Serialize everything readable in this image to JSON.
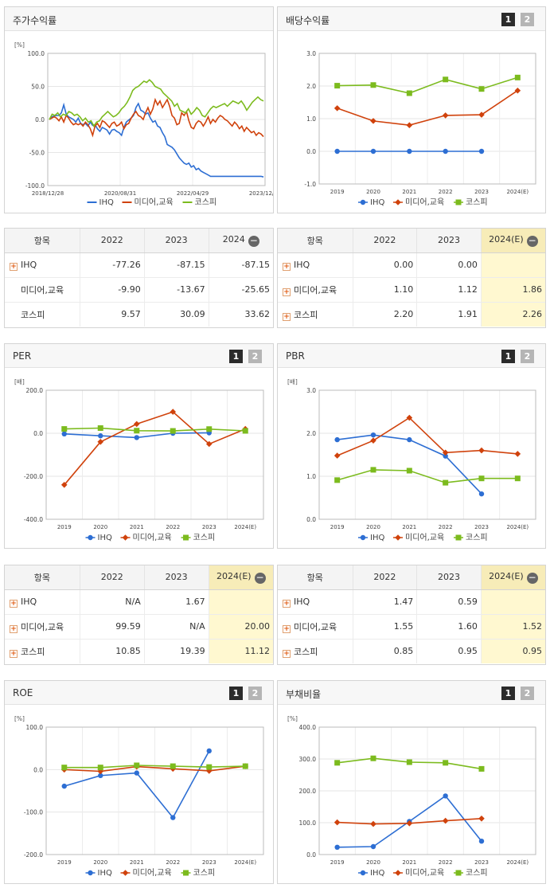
{
  "colors": {
    "ihq": "#2d6ed3",
    "media": "#d0420c",
    "kospi": "#7cbb1e"
  },
  "legend": [
    "IHQ",
    "미디어,교육",
    "코스피"
  ],
  "buttons": {
    "one": "1",
    "two": "2"
  },
  "panels": {
    "stock": {
      "title": "주가수익률"
    },
    "dividend": {
      "title": "배당수익률"
    },
    "per": {
      "title": "PER"
    },
    "pbr": {
      "title": "PBR"
    },
    "roe": {
      "title": "ROE"
    },
    "debt": {
      "title": "부채비율"
    }
  },
  "tables": {
    "stock": {
      "headers": [
        "항목",
        "2022",
        "2023",
        "2024"
      ],
      "rows": [
        {
          "name": "IHQ",
          "v": [
            "-77.26",
            "-87.15",
            "-87.15"
          ]
        },
        {
          "name": "미디어,교육",
          "v": [
            "-9.90",
            "-13.67",
            "-25.65"
          ]
        },
        {
          "name": "코스피",
          "v": [
            "9.57",
            "30.09",
            "33.62"
          ]
        }
      ]
    },
    "dividend": {
      "headers": [
        "항목",
        "2022",
        "2023",
        "2024(E)"
      ],
      "rows": [
        {
          "name": "IHQ",
          "v": [
            "0.00",
            "0.00",
            ""
          ]
        },
        {
          "name": "미디어,교육",
          "v": [
            "1.10",
            "1.12",
            "1.86"
          ]
        },
        {
          "name": "코스피",
          "v": [
            "2.20",
            "1.91",
            "2.26"
          ]
        }
      ]
    },
    "per": {
      "headers": [
        "항목",
        "2022",
        "2023",
        "2024(E)"
      ],
      "rows": [
        {
          "name": "IHQ",
          "v": [
            "N/A",
            "1.67",
            ""
          ]
        },
        {
          "name": "미디어,교육",
          "v": [
            "99.59",
            "N/A",
            "20.00"
          ]
        },
        {
          "name": "코스피",
          "v": [
            "10.85",
            "19.39",
            "11.12"
          ]
        }
      ]
    },
    "pbr": {
      "headers": [
        "항목",
        "2022",
        "2023",
        "2024(E)"
      ],
      "rows": [
        {
          "name": "IHQ",
          "v": [
            "1.47",
            "0.59",
            ""
          ]
        },
        {
          "name": "미디어,교육",
          "v": [
            "1.55",
            "1.60",
            "1.52"
          ]
        },
        {
          "name": "코스피",
          "v": [
            "0.85",
            "0.95",
            "0.95"
          ]
        }
      ]
    }
  },
  "chart_data": [
    {
      "id": "stock",
      "type": "line",
      "unit": "[%]",
      "ylim": [
        -100,
        100
      ],
      "yticks": [
        "100.0",
        "50.0",
        "0.0",
        "-50.0",
        "-100.0"
      ],
      "xticks": [
        "2018/12/28",
        "2020/08/31",
        "2022/04/29",
        "2023/12/28"
      ],
      "series": [
        {
          "name": "IHQ",
          "values": [
            0,
            4,
            5,
            6,
            6,
            10,
            22,
            8,
            4,
            2,
            0,
            -4,
            2,
            -6,
            -8,
            -6,
            -10,
            -4,
            -9,
            -8,
            -14,
            -18,
            -12,
            -14,
            -16,
            -22,
            -16,
            -15,
            -18,
            -20,
            -24,
            -12,
            -4,
            -1,
            2,
            6,
            18,
            24,
            14,
            12,
            8,
            10,
            2,
            -4,
            -2,
            -10,
            -12,
            -20,
            -26,
            -38,
            -40,
            -42,
            -46,
            -52,
            -58,
            -62,
            -66,
            -68,
            -66,
            -72,
            -70,
            -76,
            -74,
            -78,
            -80,
            -82,
            -84,
            -86,
            -86,
            -86,
            -86,
            -86,
            -86,
            -86,
            -86,
            -86,
            -86,
            -86,
            -86,
            -86,
            -86,
            -86,
            -86,
            -86,
            -86,
            -86,
            -86,
            -86,
            -86,
            -87
          ]
        },
        {
          "name": "미디어,교육",
          "values": [
            0,
            2,
            4,
            2,
            -2,
            4,
            -4,
            6,
            2,
            -4,
            -8,
            -6,
            -8,
            -6,
            -10,
            -4,
            -8,
            -14,
            -24,
            -10,
            -6,
            -12,
            -2,
            -4,
            -8,
            -12,
            -6,
            -4,
            -10,
            -8,
            -4,
            -14,
            -8,
            -6,
            2,
            8,
            12,
            6,
            4,
            0,
            10,
            18,
            8,
            16,
            30,
            22,
            28,
            18,
            24,
            30,
            20,
            6,
            2,
            -8,
            -6,
            10,
            6,
            12,
            -2,
            -12,
            -14,
            -6,
            -2,
            -4,
            -10,
            -4,
            4,
            -6,
            0,
            -4,
            2,
            6,
            4,
            0,
            -2,
            -6,
            -10,
            -4,
            -8,
            -14,
            -10,
            -18,
            -12,
            -16,
            -20,
            -18,
            -24,
            -20,
            -22,
            -26
          ]
        },
        {
          "name": "코스피",
          "values": [
            0,
            8,
            6,
            10,
            4,
            8,
            6,
            12,
            10,
            6,
            8,
            4,
            -2,
            2,
            -4,
            -2,
            -10,
            -4,
            -2,
            4,
            8,
            12,
            8,
            4,
            6,
            10,
            16,
            20,
            26,
            34,
            44,
            48,
            50,
            54,
            58,
            56,
            60,
            56,
            50,
            48,
            46,
            40,
            36,
            32,
            28,
            20,
            24,
            14,
            12,
            10,
            16,
            8,
            12,
            18,
            14,
            6,
            4,
            10,
            16,
            20,
            18,
            20,
            22,
            24,
            20,
            24,
            28,
            26,
            24,
            28,
            22,
            14,
            20,
            26,
            30,
            34,
            30,
            28
          ]
        }
      ]
    },
    {
      "id": "dividend",
      "type": "line",
      "unit": "",
      "ylim": [
        -1,
        3
      ],
      "yticks": [
        "3.0",
        "2.0",
        "1.0",
        "0.0",
        "-1.0"
      ],
      "xticks": [
        "2019",
        "2020",
        "2021",
        "2022",
        "2023",
        "2024(E)"
      ],
      "series": [
        {
          "name": "IHQ",
          "values": [
            0.0,
            0.0,
            0.0,
            0.0,
            0.0,
            null
          ]
        },
        {
          "name": "미디어,교육",
          "values": [
            1.32,
            0.93,
            0.8,
            1.1,
            1.12,
            1.86
          ]
        },
        {
          "name": "코스피",
          "values": [
            2.01,
            2.03,
            1.78,
            2.2,
            1.91,
            2.26
          ]
        }
      ]
    },
    {
      "id": "per",
      "type": "line",
      "unit": "[배]",
      "ylim": [
        -400,
        200
      ],
      "yticks": [
        "200.0",
        "0.0",
        "-200.0",
        "-400.0"
      ],
      "xticks": [
        "2019",
        "2020",
        "2021",
        "2022",
        "2023",
        "2024(E)"
      ],
      "series": [
        {
          "name": "IHQ",
          "values": [
            -3,
            -12,
            -20,
            0,
            1.67,
            null
          ]
        },
        {
          "name": "미디어,교육",
          "values": [
            -240,
            -40,
            43,
            99.59,
            -50,
            20.0
          ]
        },
        {
          "name": "코스피",
          "values": [
            20,
            24,
            12,
            10.85,
            19.39,
            11.12
          ]
        }
      ]
    },
    {
      "id": "pbr",
      "type": "line",
      "unit": "[배]",
      "ylim": [
        0,
        3
      ],
      "yticks": [
        "3.0",
        "2.0",
        "1.0",
        "0.0"
      ],
      "xticks": [
        "2019",
        "2020",
        "2021",
        "2022",
        "2023",
        "2024(E)"
      ],
      "series": [
        {
          "name": "IHQ",
          "values": [
            1.85,
            1.96,
            1.85,
            1.47,
            0.59,
            null
          ]
        },
        {
          "name": "미디어,교육",
          "values": [
            1.48,
            1.83,
            2.36,
            1.55,
            1.6,
            1.52
          ]
        },
        {
          "name": "코스피",
          "values": [
            0.91,
            1.15,
            1.13,
            0.85,
            0.95,
            0.95
          ]
        }
      ]
    },
    {
      "id": "roe",
      "type": "line",
      "unit": "[%]",
      "ylim": [
        -200,
        100
      ],
      "yticks": [
        "100.0",
        "0.0",
        "-100.0",
        "-200.0"
      ],
      "xticks": [
        "2019",
        "2020",
        "2021",
        "2022",
        "2023",
        "2024(E)"
      ],
      "series": [
        {
          "name": "IHQ",
          "values": [
            -39,
            -14,
            -8,
            -113,
            44,
            null
          ]
        },
        {
          "name": "미디어,교육",
          "values": [
            0,
            -4,
            7,
            2,
            -3,
            8
          ]
        },
        {
          "name": "코스피",
          "values": [
            5,
            5,
            10,
            8,
            6,
            8
          ]
        }
      ]
    },
    {
      "id": "debt",
      "type": "line",
      "unit": "[%]",
      "ylim": [
        0,
        400
      ],
      "yticks": [
        "400.0",
        "300.0",
        "200.0",
        "100.0",
        "0.0"
      ],
      "xticks": [
        "2019",
        "2020",
        "2021",
        "2022",
        "2023",
        "2024(E)"
      ],
      "series": [
        {
          "name": "IHQ",
          "values": [
            23,
            25,
            104,
            184,
            42,
            null
          ]
        },
        {
          "name": "미디어,교육",
          "values": [
            101,
            96,
            98,
            106,
            113,
            null
          ]
        },
        {
          "name": "코스피",
          "values": [
            288,
            302,
            290,
            288,
            269,
            null
          ]
        }
      ]
    }
  ]
}
